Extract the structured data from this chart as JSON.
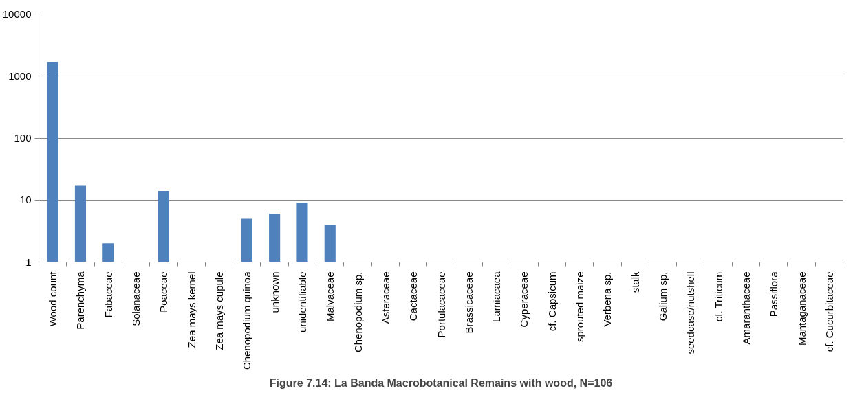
{
  "chart_data": {
    "type": "bar",
    "title": "Figure 7.14: La Banda Macrobotanical Remains with wood, N=106",
    "categories": [
      "Wood count",
      "Parenchyma",
      "Fabaceae",
      "Solanaceae",
      "Poaceae",
      "Zea mays kernel",
      "Zea mays cupule",
      "Chenopodium quinoa",
      "unknown",
      "unidentifiable",
      "Malvaceae",
      "Chenopodium sp.",
      "Asteraceae",
      "Cactaceae",
      "Portulacaceae",
      "Brassicaceae",
      "Lamiacaea",
      "Cyperaceae",
      "cf. Capsicum",
      "sprouted maize",
      "Verbena sp.",
      "stalk",
      "Galium sp.",
      "seedcase/nutshell",
      "cf. Triticum",
      "Amaranthaceae",
      "Passiflora",
      "Mantaganaceae",
      "cf. Cucurbitaceae"
    ],
    "values": [
      1700,
      17,
      2,
      null,
      14,
      null,
      null,
      5,
      6,
      9,
      4,
      null,
      null,
      null,
      null,
      null,
      null,
      null,
      null,
      null,
      null,
      null,
      null,
      null,
      null,
      null,
      null,
      null,
      null
    ],
    "color": "#4f81bd",
    "log": "y",
    "ylim": [
      1,
      10000
    ],
    "yticks": [
      1,
      10,
      100,
      1000,
      10000
    ],
    "grid": "y"
  }
}
